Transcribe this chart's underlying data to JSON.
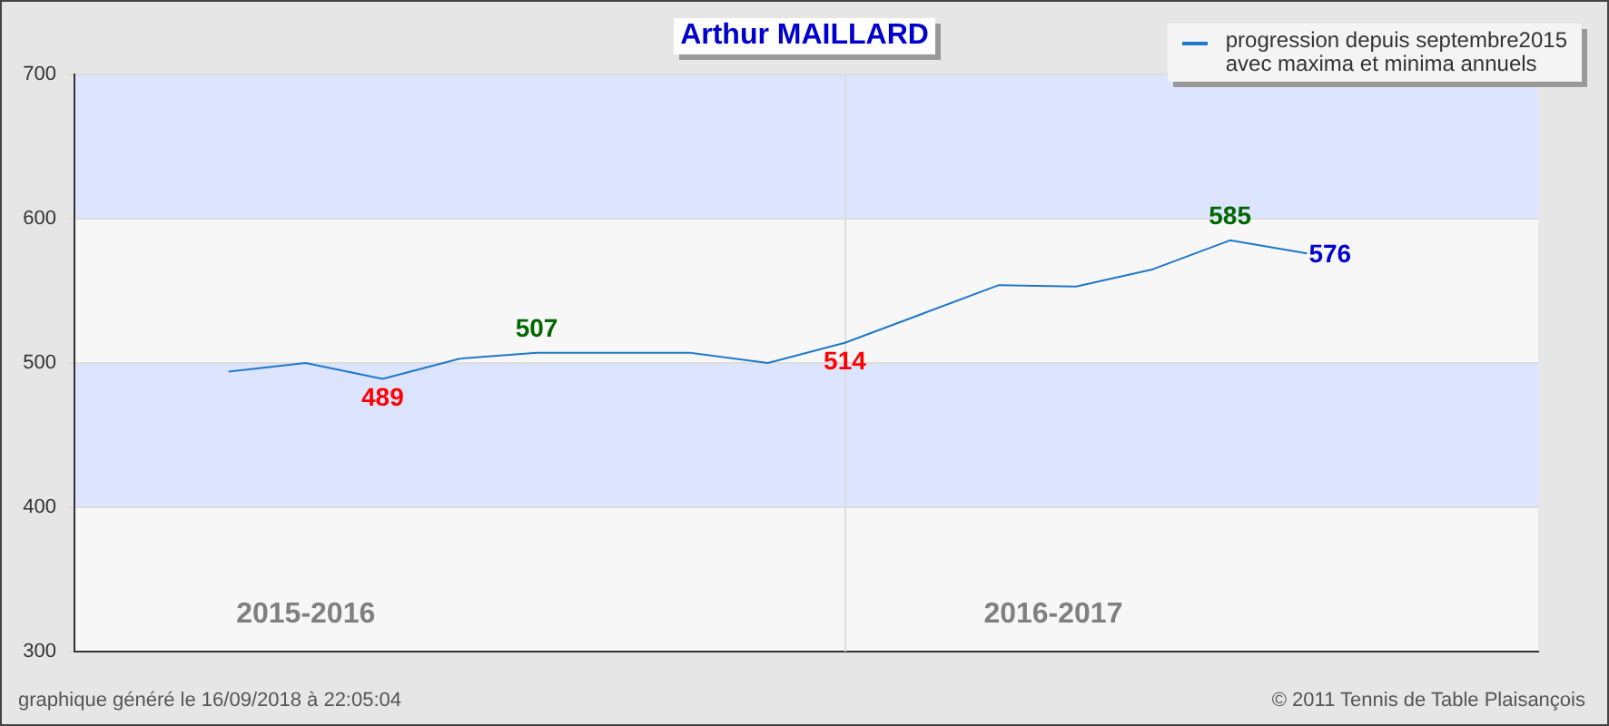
{
  "chart_data": {
    "type": "line",
    "title": "Arthur MAILLARD",
    "categories": [
      null,
      null,
      null,
      null,
      null,
      null,
      null,
      null,
      null,
      null,
      null,
      null,
      null,
      null,
      null,
      null,
      null,
      null,
      null,
      null
    ],
    "series": [
      {
        "name": "progression depuis septembre2015\navec maxima et minima annuels",
        "color": "#1f78c8",
        "values": [
          null,
          null,
          494,
          500,
          489,
          503,
          507,
          507,
          507,
          500,
          514,
          534,
          554,
          553,
          565,
          585,
          576,
          null,
          null,
          null
        ],
        "value_labels": [
          null,
          null,
          null,
          null,
          "489",
          null,
          "507",
          null,
          null,
          null,
          "514",
          null,
          null,
          null,
          null,
          "585",
          "576",
          null,
          null,
          null
        ]
      }
    ],
    "ylim": [
      300,
      700
    ],
    "yticks": [
      300,
      400,
      500,
      600,
      700
    ],
    "tick_labels": "y",
    "grid": "y",
    "legend": "top right",
    "marker": "none",
    "line_style": "solid",
    "bands": [
      {
        "axis": "y",
        "from": 400,
        "to": 500,
        "color": "#dde4ff"
      },
      {
        "axis": "y",
        "from": 600,
        "to": 700,
        "color": "#dde4ff"
      }
    ],
    "annotations": [
      "2015-2016",
      "2016-2017",
      "graphique généré le 16/09/2018 à 22:05:04",
      "© 2011 Tennis de Table Plaisançois"
    ]
  }
}
